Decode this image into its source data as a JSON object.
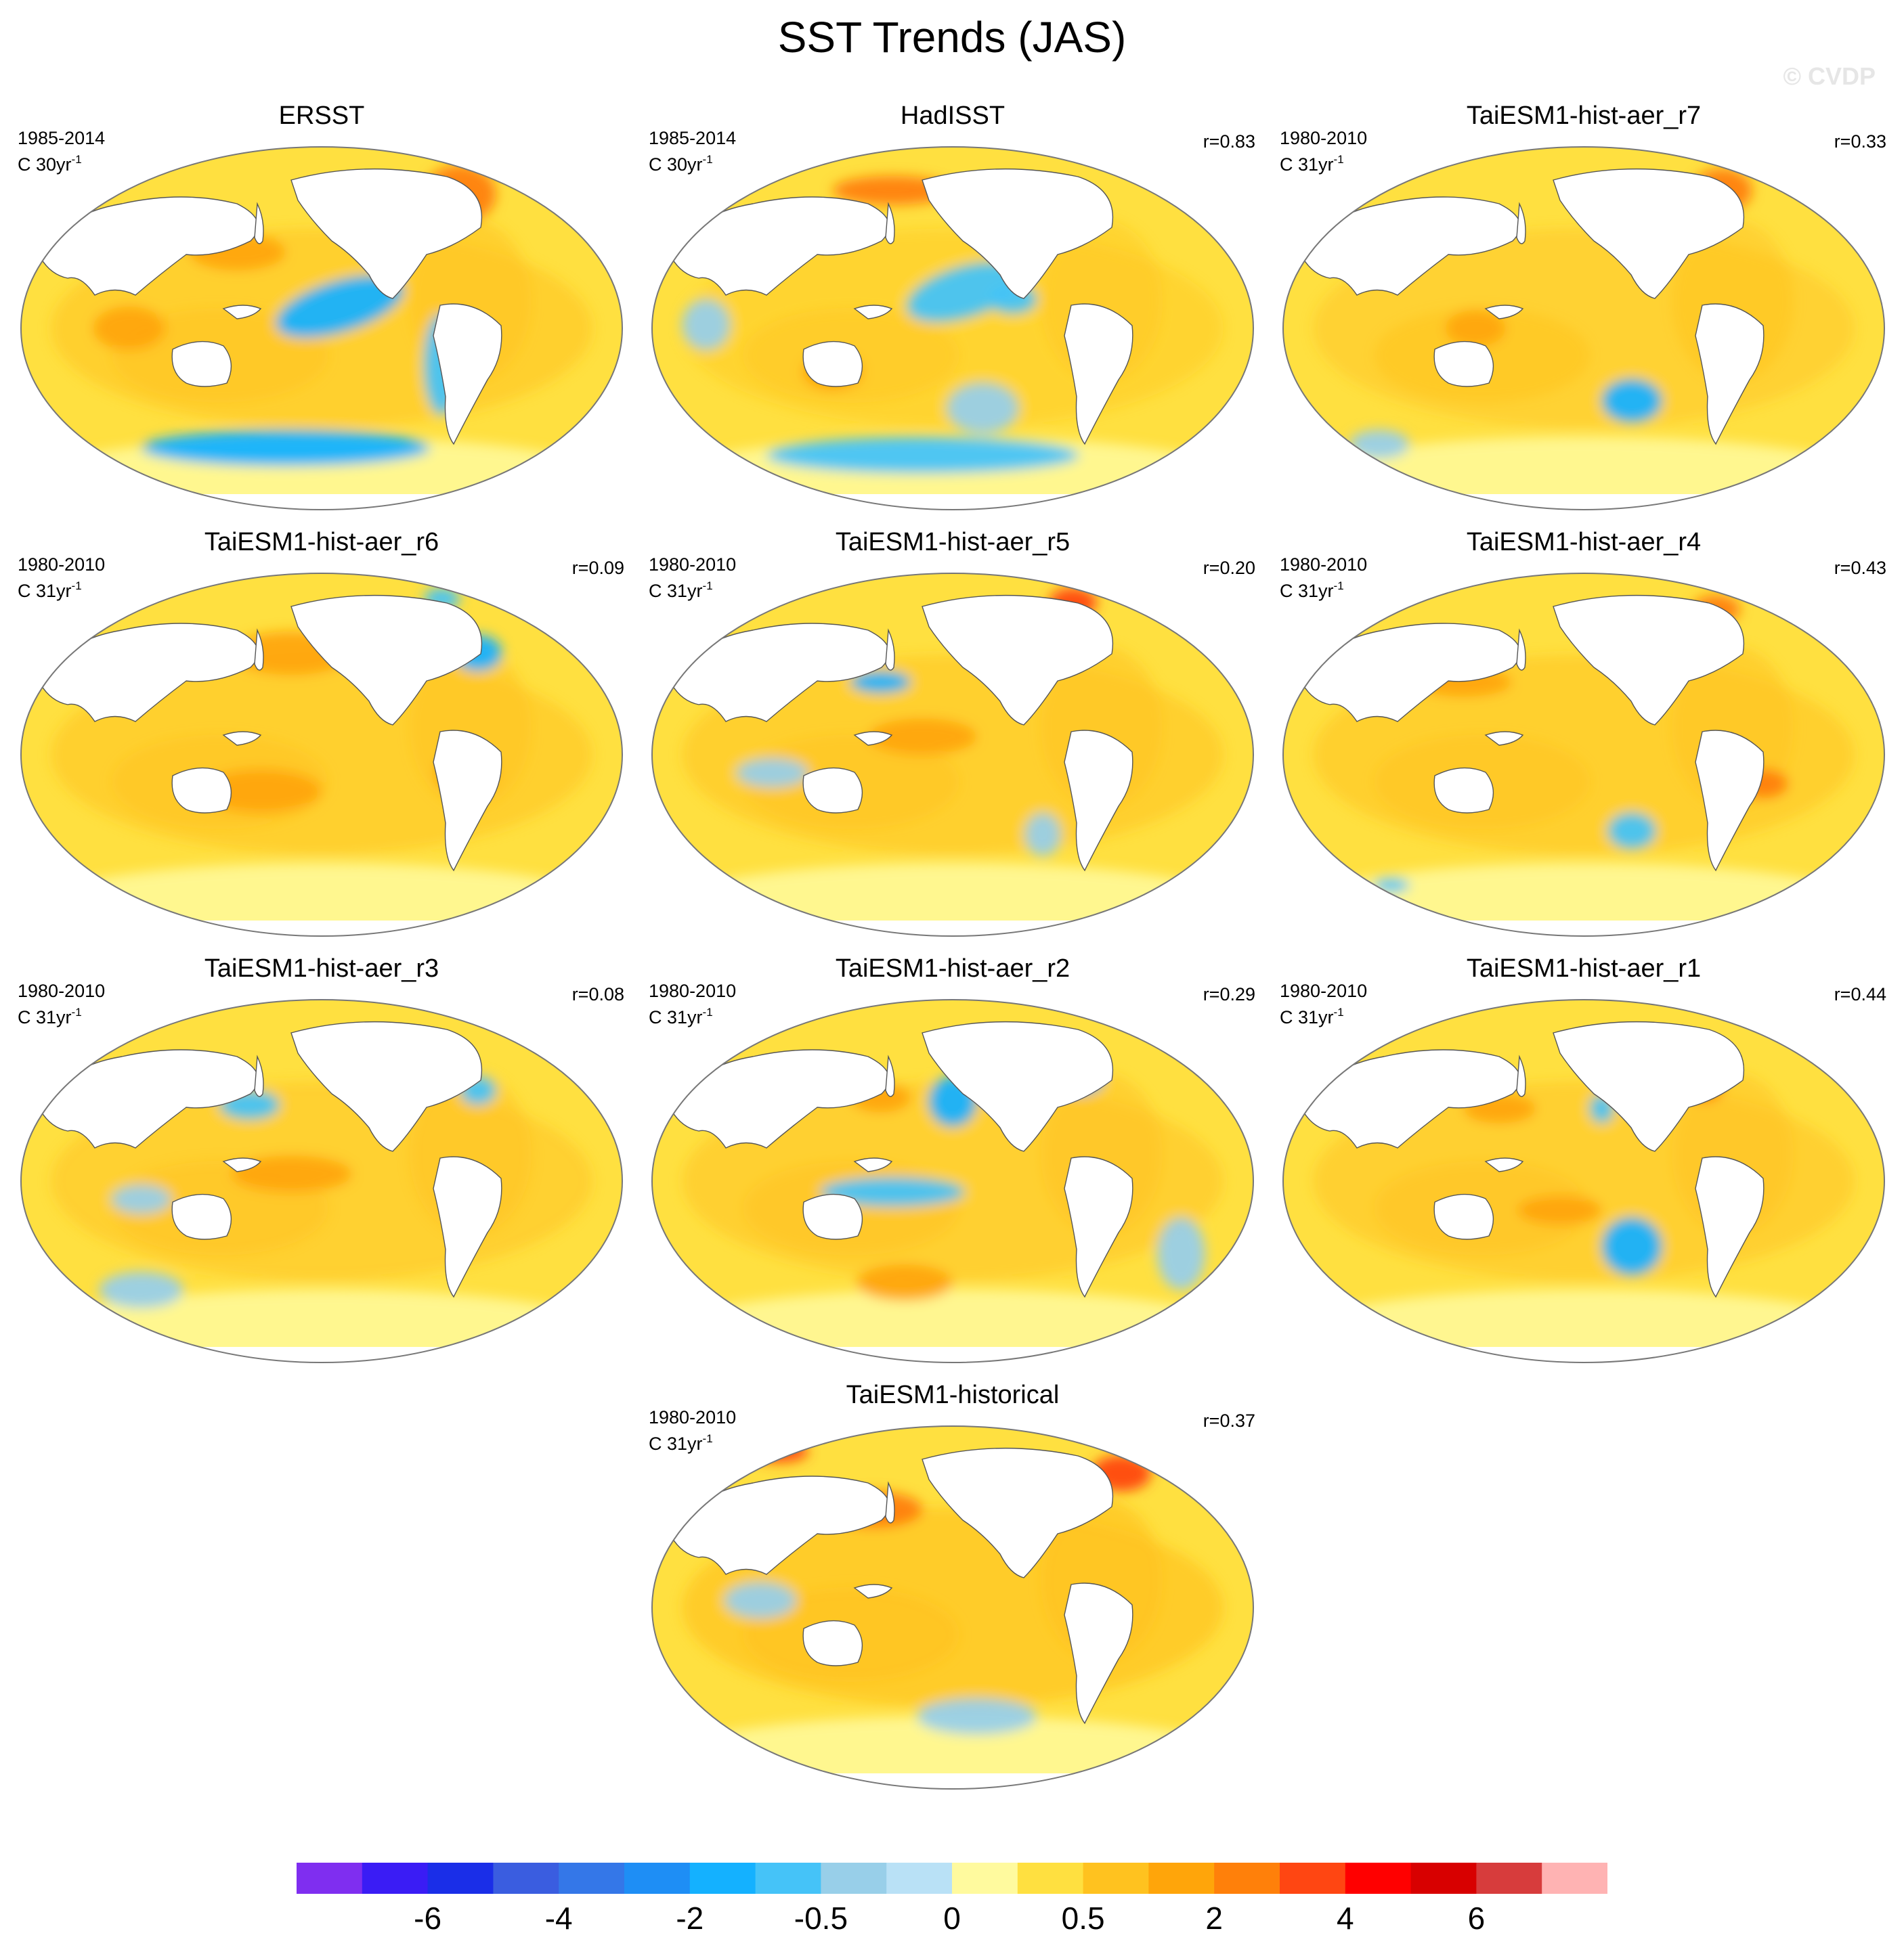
{
  "title": "SST Trends (JAS)",
  "watermark": "© CVDP",
  "panels": [
    {
      "title": "ERSST",
      "period": "1985-2014",
      "units_base": "C 30yr",
      "units_exp": "-1",
      "r": ""
    },
    {
      "title": "HadISST",
      "period": "1985-2014",
      "units_base": "C 30yr",
      "units_exp": "-1",
      "r": "r=0.83"
    },
    {
      "title": "TaiESM1-hist-aer_r7",
      "period": "1980-2010",
      "units_base": "C 31yr",
      "units_exp": "-1",
      "r": "r=0.33"
    },
    {
      "title": "TaiESM1-hist-aer_r6",
      "period": "1980-2010",
      "units_base": "C 31yr",
      "units_exp": "-1",
      "r": "r=0.09"
    },
    {
      "title": "TaiESM1-hist-aer_r5",
      "period": "1980-2010",
      "units_base": "C 31yr",
      "units_exp": "-1",
      "r": "r=0.20"
    },
    {
      "title": "TaiESM1-hist-aer_r4",
      "period": "1980-2010",
      "units_base": "C 31yr",
      "units_exp": "-1",
      "r": "r=0.43"
    },
    {
      "title": "TaiESM1-hist-aer_r3",
      "period": "1980-2010",
      "units_base": "C 31yr",
      "units_exp": "-1",
      "r": "r=0.08"
    },
    {
      "title": "TaiESM1-hist-aer_r2",
      "period": "1980-2010",
      "units_base": "C 31yr",
      "units_exp": "-1",
      "r": "r=0.29"
    },
    {
      "title": "TaiESM1-hist-aer_r1",
      "period": "1980-2010",
      "units_base": "C 31yr",
      "units_exp": "-1",
      "r": "r=0.44"
    },
    {
      "title": "TaiESM1-historical",
      "period": "1980-2010",
      "units_base": "C 31yr",
      "units_exp": "-1",
      "r": "r=0.37"
    }
  ],
  "chart_data": {
    "type": "heatmap",
    "title": "SST Trends (JAS)",
    "projection": "Robinson (Pacific-centered)",
    "colorbar": {
      "colors": [
        "#7f2ef0",
        "#3a1cf5",
        "#1a2ee8",
        "#3a5de0",
        "#3477e8",
        "#1e8ef5",
        "#14b1ff",
        "#45c3f8",
        "#98cfe9",
        "#b9e1f6",
        "#fffa9e",
        "#ffe040",
        "#ffc21f",
        "#ffa50a",
        "#ff800a",
        "#ff4612",
        "#ff0000",
        "#d80000",
        "#d73c3c",
        "#ffb3b3"
      ],
      "tick_labels": [
        "-6",
        "-4",
        "-2",
        "-0.5",
        "0",
        "0.5",
        "2",
        "4",
        "6"
      ]
    },
    "panel_features": [
      {
        "warm_level": 0.55,
        "blobs": [
          [
            0.53,
            0.44,
            0.11,
            0.07,
            -0.3,
            -1.8
          ],
          [
            0.36,
            0.29,
            0.08,
            0.05,
            0,
            0.9
          ],
          [
            0.44,
            0.83,
            0.24,
            0.05,
            0,
            -1.6
          ],
          [
            0.7,
            0.6,
            0.03,
            0.14,
            0,
            -1.0
          ],
          [
            0.73,
            0.13,
            0.06,
            0.08,
            0,
            1.2
          ],
          [
            0.18,
            0.5,
            0.06,
            0.06,
            0,
            0.8
          ]
        ]
      },
      {
        "warm_level": 0.4,
        "blobs": [
          [
            0.52,
            0.4,
            0.1,
            0.07,
            -0.3,
            -1.4
          ],
          [
            0.55,
            0.72,
            0.06,
            0.07,
            0,
            -0.8
          ],
          [
            0.45,
            0.85,
            0.26,
            0.05,
            0,
            -1.2
          ],
          [
            0.4,
            0.12,
            0.1,
            0.04,
            0,
            1.1
          ],
          [
            0.09,
            0.49,
            0.04,
            0.07,
            0,
            -0.7
          ],
          [
            0.3,
            0.62,
            0.05,
            0.05,
            0,
            0.7
          ],
          [
            0.6,
            0.42,
            0.04,
            0.04,
            0,
            -1.0
          ]
        ]
      },
      {
        "warm_level": 0.45,
        "blobs": [
          [
            0.58,
            0.7,
            0.05,
            0.06,
            0,
            -1.5
          ],
          [
            0.73,
            0.12,
            0.05,
            0.06,
            0,
            1.1
          ],
          [
            0.32,
            0.5,
            0.05,
            0.05,
            0,
            0.6
          ],
          [
            0.16,
            0.82,
            0.05,
            0.04,
            0,
            -0.6
          ]
        ]
      },
      {
        "warm_level": 0.55,
        "blobs": [
          [
            0.76,
            0.22,
            0.04,
            0.05,
            0,
            -1.5
          ],
          [
            0.7,
            0.07,
            0.03,
            0.03,
            0,
            -1.0
          ],
          [
            0.45,
            0.22,
            0.1,
            0.06,
            0,
            0.8
          ],
          [
            0.4,
            0.6,
            0.1,
            0.06,
            0,
            0.7
          ],
          [
            0.74,
            0.55,
            0.05,
            0.06,
            0,
            0.7
          ]
        ]
      },
      {
        "warm_level": 0.55,
        "blobs": [
          [
            0.38,
            0.3,
            0.05,
            0.03,
            0,
            -1.6
          ],
          [
            0.7,
            0.08,
            0.04,
            0.04,
            0,
            1.5
          ],
          [
            0.65,
            0.72,
            0.03,
            0.06,
            0,
            -0.8
          ],
          [
            0.2,
            0.55,
            0.06,
            0.04,
            0,
            -0.7
          ],
          [
            0.45,
            0.45,
            0.09,
            0.05,
            0,
            0.8
          ]
        ]
      },
      {
        "warm_level": 0.55,
        "blobs": [
          [
            0.58,
            0.71,
            0.04,
            0.05,
            0,
            -1.2
          ],
          [
            0.72,
            0.1,
            0.04,
            0.04,
            0,
            1.2
          ],
          [
            0.3,
            0.3,
            0.08,
            0.04,
            0,
            0.8
          ],
          [
            0.18,
            0.86,
            0.03,
            0.02,
            0,
            -1.4
          ],
          [
            0.8,
            0.58,
            0.04,
            0.04,
            0,
            1.1
          ]
        ]
      },
      {
        "warm_level": 0.5,
        "blobs": [
          [
            0.38,
            0.29,
            0.05,
            0.04,
            0,
            -1.3
          ],
          [
            0.76,
            0.25,
            0.03,
            0.04,
            0,
            -1.4
          ],
          [
            0.2,
            0.55,
            0.05,
            0.04,
            0,
            -0.8
          ],
          [
            0.2,
            0.8,
            0.07,
            0.05,
            0,
            -0.7
          ],
          [
            0.1,
            0.05,
            0.05,
            0.03,
            0,
            1.3
          ],
          [
            0.45,
            0.48,
            0.1,
            0.05,
            0,
            0.7
          ]
        ]
      },
      {
        "warm_level": 0.5,
        "blobs": [
          [
            0.5,
            0.28,
            0.04,
            0.07,
            0,
            -1.6
          ],
          [
            0.71,
            0.22,
            0.04,
            0.04,
            0,
            -1.6
          ],
          [
            0.4,
            0.53,
            0.12,
            0.04,
            0,
            -1.0
          ],
          [
            0.88,
            0.7,
            0.04,
            0.1,
            0,
            -0.8
          ],
          [
            0.38,
            0.27,
            0.05,
            0.04,
            0,
            0.9
          ],
          [
            0.42,
            0.78,
            0.08,
            0.05,
            0,
            0.6
          ]
        ]
      },
      {
        "warm_level": 0.5,
        "blobs": [
          [
            0.58,
            0.68,
            0.05,
            0.08,
            0,
            -1.5
          ],
          [
            0.53,
            0.3,
            0.02,
            0.04,
            0,
            -1.2
          ],
          [
            0.7,
            0.24,
            0.03,
            0.04,
            0,
            1.2
          ],
          [
            0.36,
            0.3,
            0.06,
            0.04,
            0,
            0.8
          ],
          [
            0.46,
            0.58,
            0.07,
            0.04,
            0,
            0.7
          ]
        ]
      },
      {
        "warm_level": 0.65,
        "blobs": [
          [
            0.37,
            0.23,
            0.08,
            0.05,
            0,
            1.2
          ],
          [
            0.78,
            0.13,
            0.05,
            0.05,
            0,
            1.5
          ],
          [
            0.21,
            0.07,
            0.05,
            0.03,
            0,
            1.6
          ],
          [
            0.54,
            0.8,
            0.1,
            0.05,
            0,
            -0.6
          ],
          [
            0.18,
            0.48,
            0.06,
            0.05,
            0,
            -0.5
          ]
        ]
      }
    ]
  }
}
